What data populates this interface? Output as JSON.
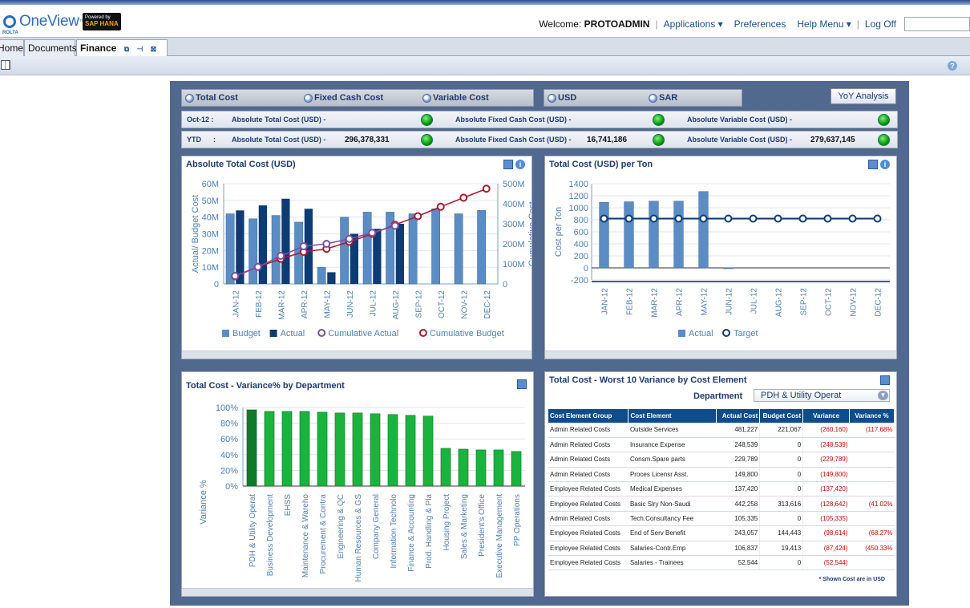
{
  "app": {
    "logo_text": "OneView",
    "logo_tm": "™",
    "logo_sub": "ROLTA",
    "powered_by": "Powered by",
    "powered_brand": "SAP HANA"
  },
  "nav": {
    "welcome_label": "Welcome:",
    "user": "PROTOADMIN",
    "applications": "Applications ▾",
    "preferences": "Preferences",
    "help": "Help Menu ▾",
    "logoff": "Log Off"
  },
  "tabs": [
    {
      "label": "Home"
    },
    {
      "label": "Documents"
    },
    {
      "label": "Finance"
    }
  ],
  "selectors": {
    "cost_types": [
      "Total Cost",
      "Fixed Cash Cost",
      "Variable Cost"
    ],
    "currencies": [
      "USD",
      "SAR"
    ],
    "yoy": "YoY Analysis"
  },
  "kpi": {
    "month": {
      "period": "Oct-12 :",
      "total_label": "Absolute Total Cost (USD) -",
      "total_value": "",
      "fixed_label": "Absolute Fixed Cash Cost (USD) -",
      "fixed_value": "",
      "variable_label": "Absolute Variable Cost (USD) -",
      "variable_value": ""
    },
    "ytd": {
      "period": "YTD      :",
      "total_label": "Absolute Total Cost (USD) -",
      "total_value": "296,378,331",
      "fixed_label": "Absolute Fixed Cash Cost (USD) -",
      "fixed_value": "16,741,186",
      "variable_label": "Absolute Variable Cost (USD) -",
      "variable_value": "279,637,145"
    }
  },
  "status_color": "#0a9a0a",
  "chart_data": [
    {
      "type": "bar",
      "title": "Absolute Total Cost (USD)",
      "ylabel": "Actual/ Budget Cost",
      "y2label": "Cumulative Cost",
      "categories": [
        "JAN-12",
        "FEB-12",
        "MAR-12",
        "APR-12",
        "MAY-12",
        "JUN-12",
        "JUL-12",
        "AUG-12",
        "SEP-12",
        "OCT-12",
        "NOV-12",
        "DEC-12"
      ],
      "ylim": [
        0,
        60
      ],
      "yticks": [
        "0",
        "10M",
        "20M",
        "30M",
        "40M",
        "50M",
        "60M"
      ],
      "y2lim": [
        0,
        500
      ],
      "y2ticks": [
        "0",
        "100M",
        "200M",
        "300M",
        "400M",
        "500M"
      ],
      "series": [
        {
          "name": "Budget",
          "values": [
            42,
            39,
            41,
            37,
            10,
            40,
            43,
            43,
            42,
            45,
            42,
            44
          ],
          "color": "#5b8cc4"
        },
        {
          "name": "Actual",
          "values": [
            44,
            47,
            51,
            45,
            7,
            30,
            33,
            36,
            null,
            null,
            null,
            null
          ],
          "color": "#0d3b74"
        },
        {
          "name": "Cumulative Actual",
          "values": [
            40,
            85,
            140,
            188,
            200,
            225,
            255,
            290,
            null,
            null,
            null,
            null
          ],
          "color": "#7a4fa0",
          "axis": "y2"
        },
        {
          "name": "Cumulative Budget",
          "values": [
            38,
            85,
            125,
            160,
            175,
            210,
            250,
            295,
            338,
            385,
            430,
            475
          ],
          "color": "#b2182b",
          "axis": "y2"
        }
      ]
    },
    {
      "type": "bar",
      "title": "Total Cost (USD) per Ton",
      "ylabel": "Cost per Ton",
      "categories": [
        "JAN-12",
        "FEB-12",
        "MAR-12",
        "APR-12",
        "MAY-12",
        "JUN-12",
        "JUL-12",
        "AUG-12",
        "SEP-12",
        "OCT-12",
        "NOV-12",
        "DEC-12"
      ],
      "ylim": [
        -200,
        1400
      ],
      "yticks": [
        "-200",
        "0",
        "200",
        "400",
        "600",
        "800",
        "1000",
        "1200",
        "1400"
      ],
      "series": [
        {
          "name": "Actual",
          "values": [
            1090,
            1100,
            1110,
            1110,
            1270,
            -10,
            null,
            null,
            null,
            null,
            null,
            null
          ],
          "color": "#5b8cc4"
        },
        {
          "name": "Target",
          "values": [
            820,
            820,
            820,
            820,
            820,
            820,
            820,
            820,
            820,
            820,
            820,
            820
          ],
          "color": "#0d3b74"
        }
      ]
    },
    {
      "type": "bar",
      "title": "Total Cost - Variance% by Department",
      "ylabel": "Variance %",
      "categories": [
        "PDH & Utility Operat",
        "Business Development",
        "EHSS",
        "Maintenance & Wareho",
        "Procurement & Contra",
        "Engineering & QC",
        "Human Resources & GS",
        "Company General",
        "Information Technolo",
        "Finance & Accounting",
        "Prod. Handling & Pla",
        "Housing Project",
        "Sales & Marketing",
        "President's Office",
        "Executive Management",
        "PP Operations"
      ],
      "ylim": [
        0,
        100
      ],
      "yticks": [
        "0%",
        "20%",
        "40%",
        "60%",
        "80%",
        "100%"
      ],
      "series": [
        {
          "name": "",
          "values": [
            97,
            95,
            95,
            95,
            94,
            93,
            93,
            92,
            91,
            90,
            89,
            48,
            47,
            46,
            46,
            44
          ]
        }
      ]
    }
  ],
  "worst10": {
    "title": "Total Cost - Worst 10 Variance by Cost Element",
    "department_label": "Department",
    "department_value": "PDH & Utility Operat",
    "columns": [
      "Cost Element Group",
      "Cost Element",
      "Actual Cost",
      "Budget Cost",
      "Variance",
      "Variance %"
    ],
    "rows": [
      [
        "Admin Related Costs",
        "Outside Services",
        "481,227",
        "221,067",
        "(260,160)",
        "(117.68%"
      ],
      [
        "Admin Related Costs",
        "Insurance Expense",
        "248,539",
        "0",
        "(248,539)",
        ""
      ],
      [
        "Admin Related Costs",
        "Consm.Spare parts",
        "229,789",
        "0",
        "(229,789)",
        ""
      ],
      [
        "Admin Related Costs",
        "Proces Licensr Asst.",
        "149,800",
        "0",
        "(149,800)",
        ""
      ],
      [
        "Employee Related Costs",
        "Medical Expenses",
        "137,420",
        "0",
        "(137,420)",
        ""
      ],
      [
        "Employee Related Costs",
        "Basic Slry Non-Saudi",
        "442,258",
        "313,616",
        "(128,642)",
        "(41.02%"
      ],
      [
        "Admin Related Costs",
        "Tech.Consultancy Fee",
        "105,335",
        "0",
        "(105,335)",
        ""
      ],
      [
        "Employee Related Costs",
        "End of Serv Benefit",
        "243,057",
        "144,443",
        "(98,614)",
        "(68.27%"
      ],
      [
        "Employee Related Costs",
        "Salaries-Contr.Emp",
        "106,837",
        "19,413",
        "(87,424)",
        "(450.33%"
      ],
      [
        "Employee Related Costs",
        "Salaries - Trainees",
        "52,544",
        "0",
        "(52,544)",
        ""
      ]
    ],
    "footnote": "* Shown Cost are in USD"
  }
}
